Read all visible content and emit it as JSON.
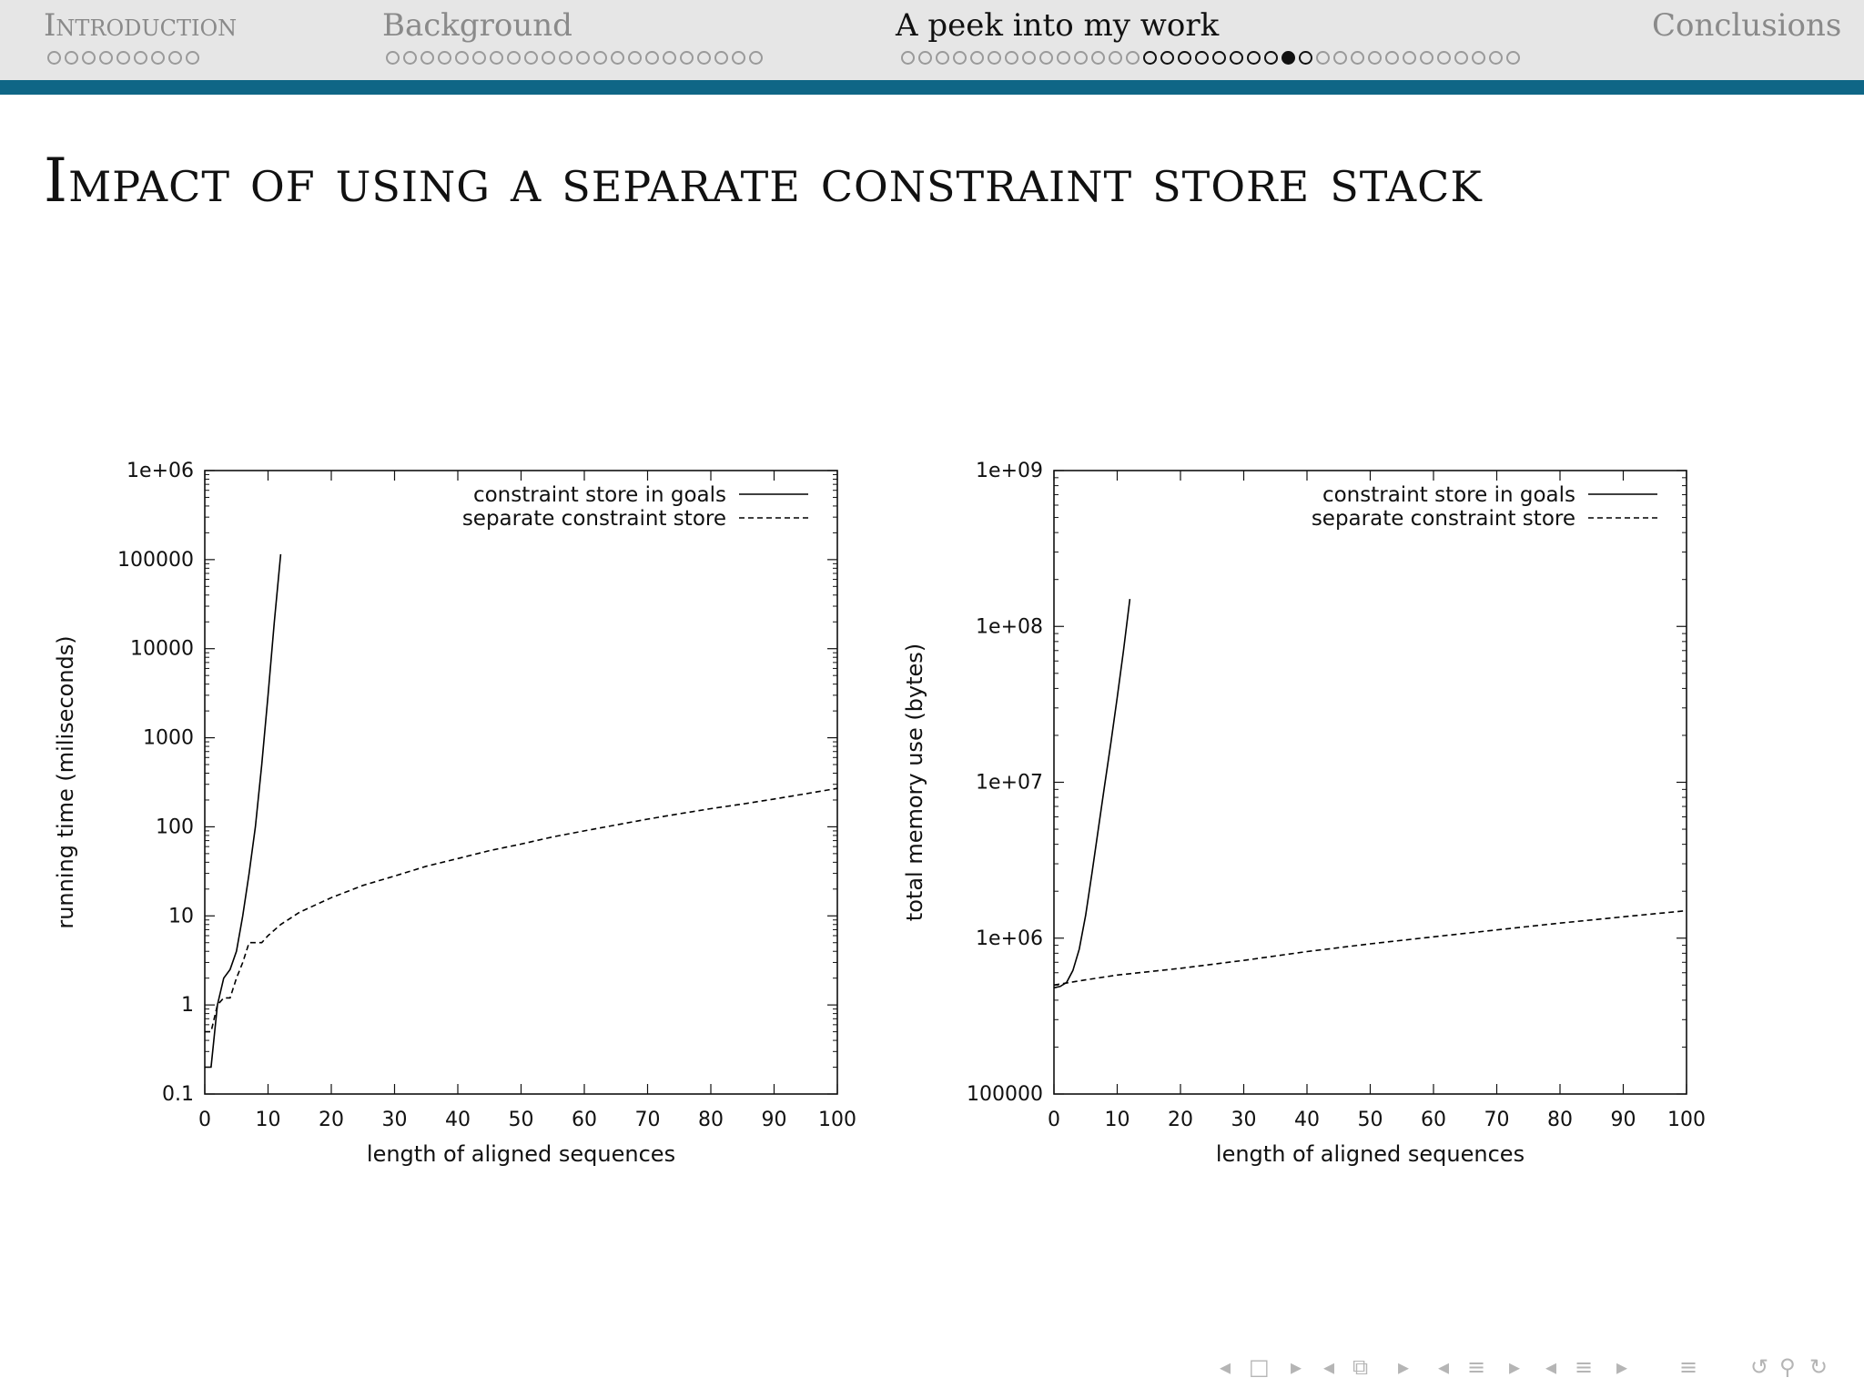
{
  "nav": {
    "sections": [
      {
        "label": "Introduction",
        "dots": 9,
        "current": false,
        "filled": -1
      },
      {
        "label": "Background",
        "dots": 22,
        "current": false,
        "filled": -1
      },
      {
        "label": "A peek into my work",
        "dots": 36,
        "current": true,
        "current_range": [
          14,
          23
        ],
        "filled": 22
      },
      {
        "label": "Conclusions",
        "dots": 0,
        "current": false,
        "filled": -1
      }
    ],
    "controls": [
      "◂",
      "□",
      "▸",
      "◂",
      "⧉",
      "▸",
      "◂",
      "≡",
      "▸",
      "◂",
      "≡",
      "▸",
      "≡",
      "↺",
      "⚲",
      "↻"
    ]
  },
  "slide": {
    "title": "Impact of using a separate constraint store stack"
  },
  "colors": {
    "header_bg": "#e6e6e6",
    "header_rule": "#0f6686",
    "series": "#000000"
  },
  "chart_data": [
    {
      "type": "line",
      "ylabel": "running time (miliseconds)",
      "xlabel": "length of aligned sequences",
      "xlim": [
        0,
        100
      ],
      "ylim": [
        0.1,
        1000000
      ],
      "yscale": "log",
      "x_ticks": [
        0,
        10,
        20,
        30,
        40,
        50,
        60,
        70,
        80,
        90,
        100
      ],
      "y_ticks": [
        0.1,
        1,
        10,
        100,
        1000,
        10000,
        100000,
        1000000
      ],
      "y_tick_labels": [
        "0.1",
        "1",
        "10",
        "100",
        "1000",
        "10000",
        "100000",
        "1e+06"
      ],
      "legend_position": "top-right",
      "series": [
        {
          "name": "constraint store in goals",
          "style": "solid",
          "x": [
            0,
            1,
            2,
            3,
            4,
            5,
            6,
            7,
            8,
            9,
            10,
            11,
            12
          ],
          "y": [
            0.2,
            0.2,
            1.0,
            2.0,
            2.5,
            4,
            10,
            30,
            100,
            500,
            3000,
            20000,
            115000
          ]
        },
        {
          "name": "separate constraint store",
          "style": "dashed",
          "x": [
            0,
            1,
            2,
            3,
            4,
            5,
            6,
            7,
            8,
            9,
            10,
            12,
            15,
            20,
            25,
            30,
            35,
            40,
            45,
            50,
            55,
            60,
            65,
            70,
            75,
            80,
            85,
            90,
            95,
            100
          ],
          "y": [
            0.5,
            0.5,
            1.0,
            1.2,
            1.2,
            2.0,
            3.0,
            5.0,
            5.0,
            5.0,
            6.0,
            8.0,
            11,
            16,
            22,
            28,
            36,
            44,
            54,
            64,
            77,
            90,
            105,
            122,
            140,
            160,
            180,
            205,
            235,
            270
          ]
        }
      ]
    },
    {
      "type": "line",
      "ylabel": "total memory use (bytes)",
      "xlabel": "length of aligned sequences",
      "xlim": [
        0,
        100
      ],
      "ylim": [
        100000,
        1000000000
      ],
      "yscale": "log",
      "x_ticks": [
        0,
        10,
        20,
        30,
        40,
        50,
        60,
        70,
        80,
        90,
        100
      ],
      "y_ticks": [
        100000,
        1000000,
        10000000,
        100000000,
        1000000000
      ],
      "y_tick_labels": [
        "100000",
        "1e+06",
        "1e+07",
        "1e+08",
        "1e+09"
      ],
      "legend_position": "top-right",
      "series": [
        {
          "name": "constraint store in goals",
          "style": "solid",
          "x": [
            0,
            1,
            2,
            3,
            4,
            5,
            6,
            7,
            8,
            9,
            10,
            11,
            12
          ],
          "y": [
            480000,
            490000,
            520000,
            620000,
            850000,
            1400000,
            2600000,
            5000000,
            9500000,
            18000000,
            35000000,
            70000000,
            150000000
          ]
        },
        {
          "name": "separate constraint store",
          "style": "dashed",
          "x": [
            0,
            5,
            10,
            20,
            30,
            40,
            50,
            60,
            70,
            80,
            90,
            100
          ],
          "y": [
            500000,
            540000,
            580000,
            640000,
            720000,
            820000,
            920000,
            1020000,
            1130000,
            1250000,
            1370000,
            1500000
          ]
        }
      ]
    }
  ]
}
